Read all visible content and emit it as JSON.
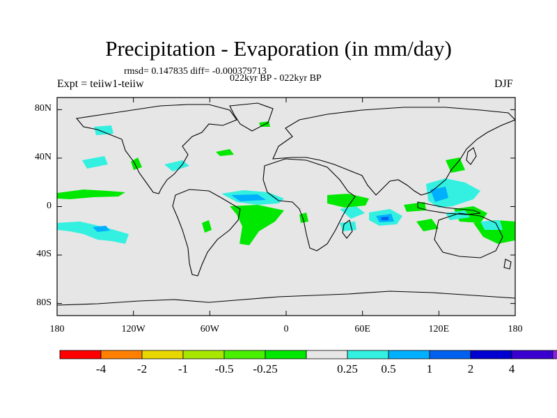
{
  "title": "Precipitation - Evaporation (in mm/day)",
  "stats": "rmsd= 0.147835 diff= -0.000379713",
  "subtitle": "022kyr BP - 022kyr BP",
  "experiment": "Expt = teiiw1-teiiw",
  "season": "DJF",
  "map": {
    "ocean_color": "#e6e6e6",
    "lat_ticks": [
      {
        "label": "80N",
        "value": 80
      },
      {
        "label": "40N",
        "value": 40
      },
      {
        "label": "0",
        "value": 0
      },
      {
        "label": "40S",
        "value": -40
      },
      {
        "label": "80S",
        "value": -80
      }
    ],
    "lon_ticks": [
      {
        "label": "180",
        "value": -180
      },
      {
        "label": "120W",
        "value": -120
      },
      {
        "label": "60W",
        "value": -60
      },
      {
        "label": "0",
        "value": 0
      },
      {
        "label": "60E",
        "value": 60
      },
      {
        "label": "120E",
        "value": 120
      },
      {
        "label": "180",
        "value": 180
      }
    ]
  },
  "colorbar": {
    "colors": [
      "#ff0000",
      "#ff8000",
      "#e8d800",
      "#a8e800",
      "#49f000",
      "#00e800",
      "#e6e6e6",
      "#33f0e0",
      "#00b0ff",
      "#0060f0",
      "#0000d0",
      "#3a00d0",
      "#8a20e8"
    ],
    "labels": [
      "-4",
      "-2",
      "-1",
      "-0.5",
      "-0.25",
      "0.25",
      "0.5",
      "1",
      "2",
      "4"
    ]
  }
}
